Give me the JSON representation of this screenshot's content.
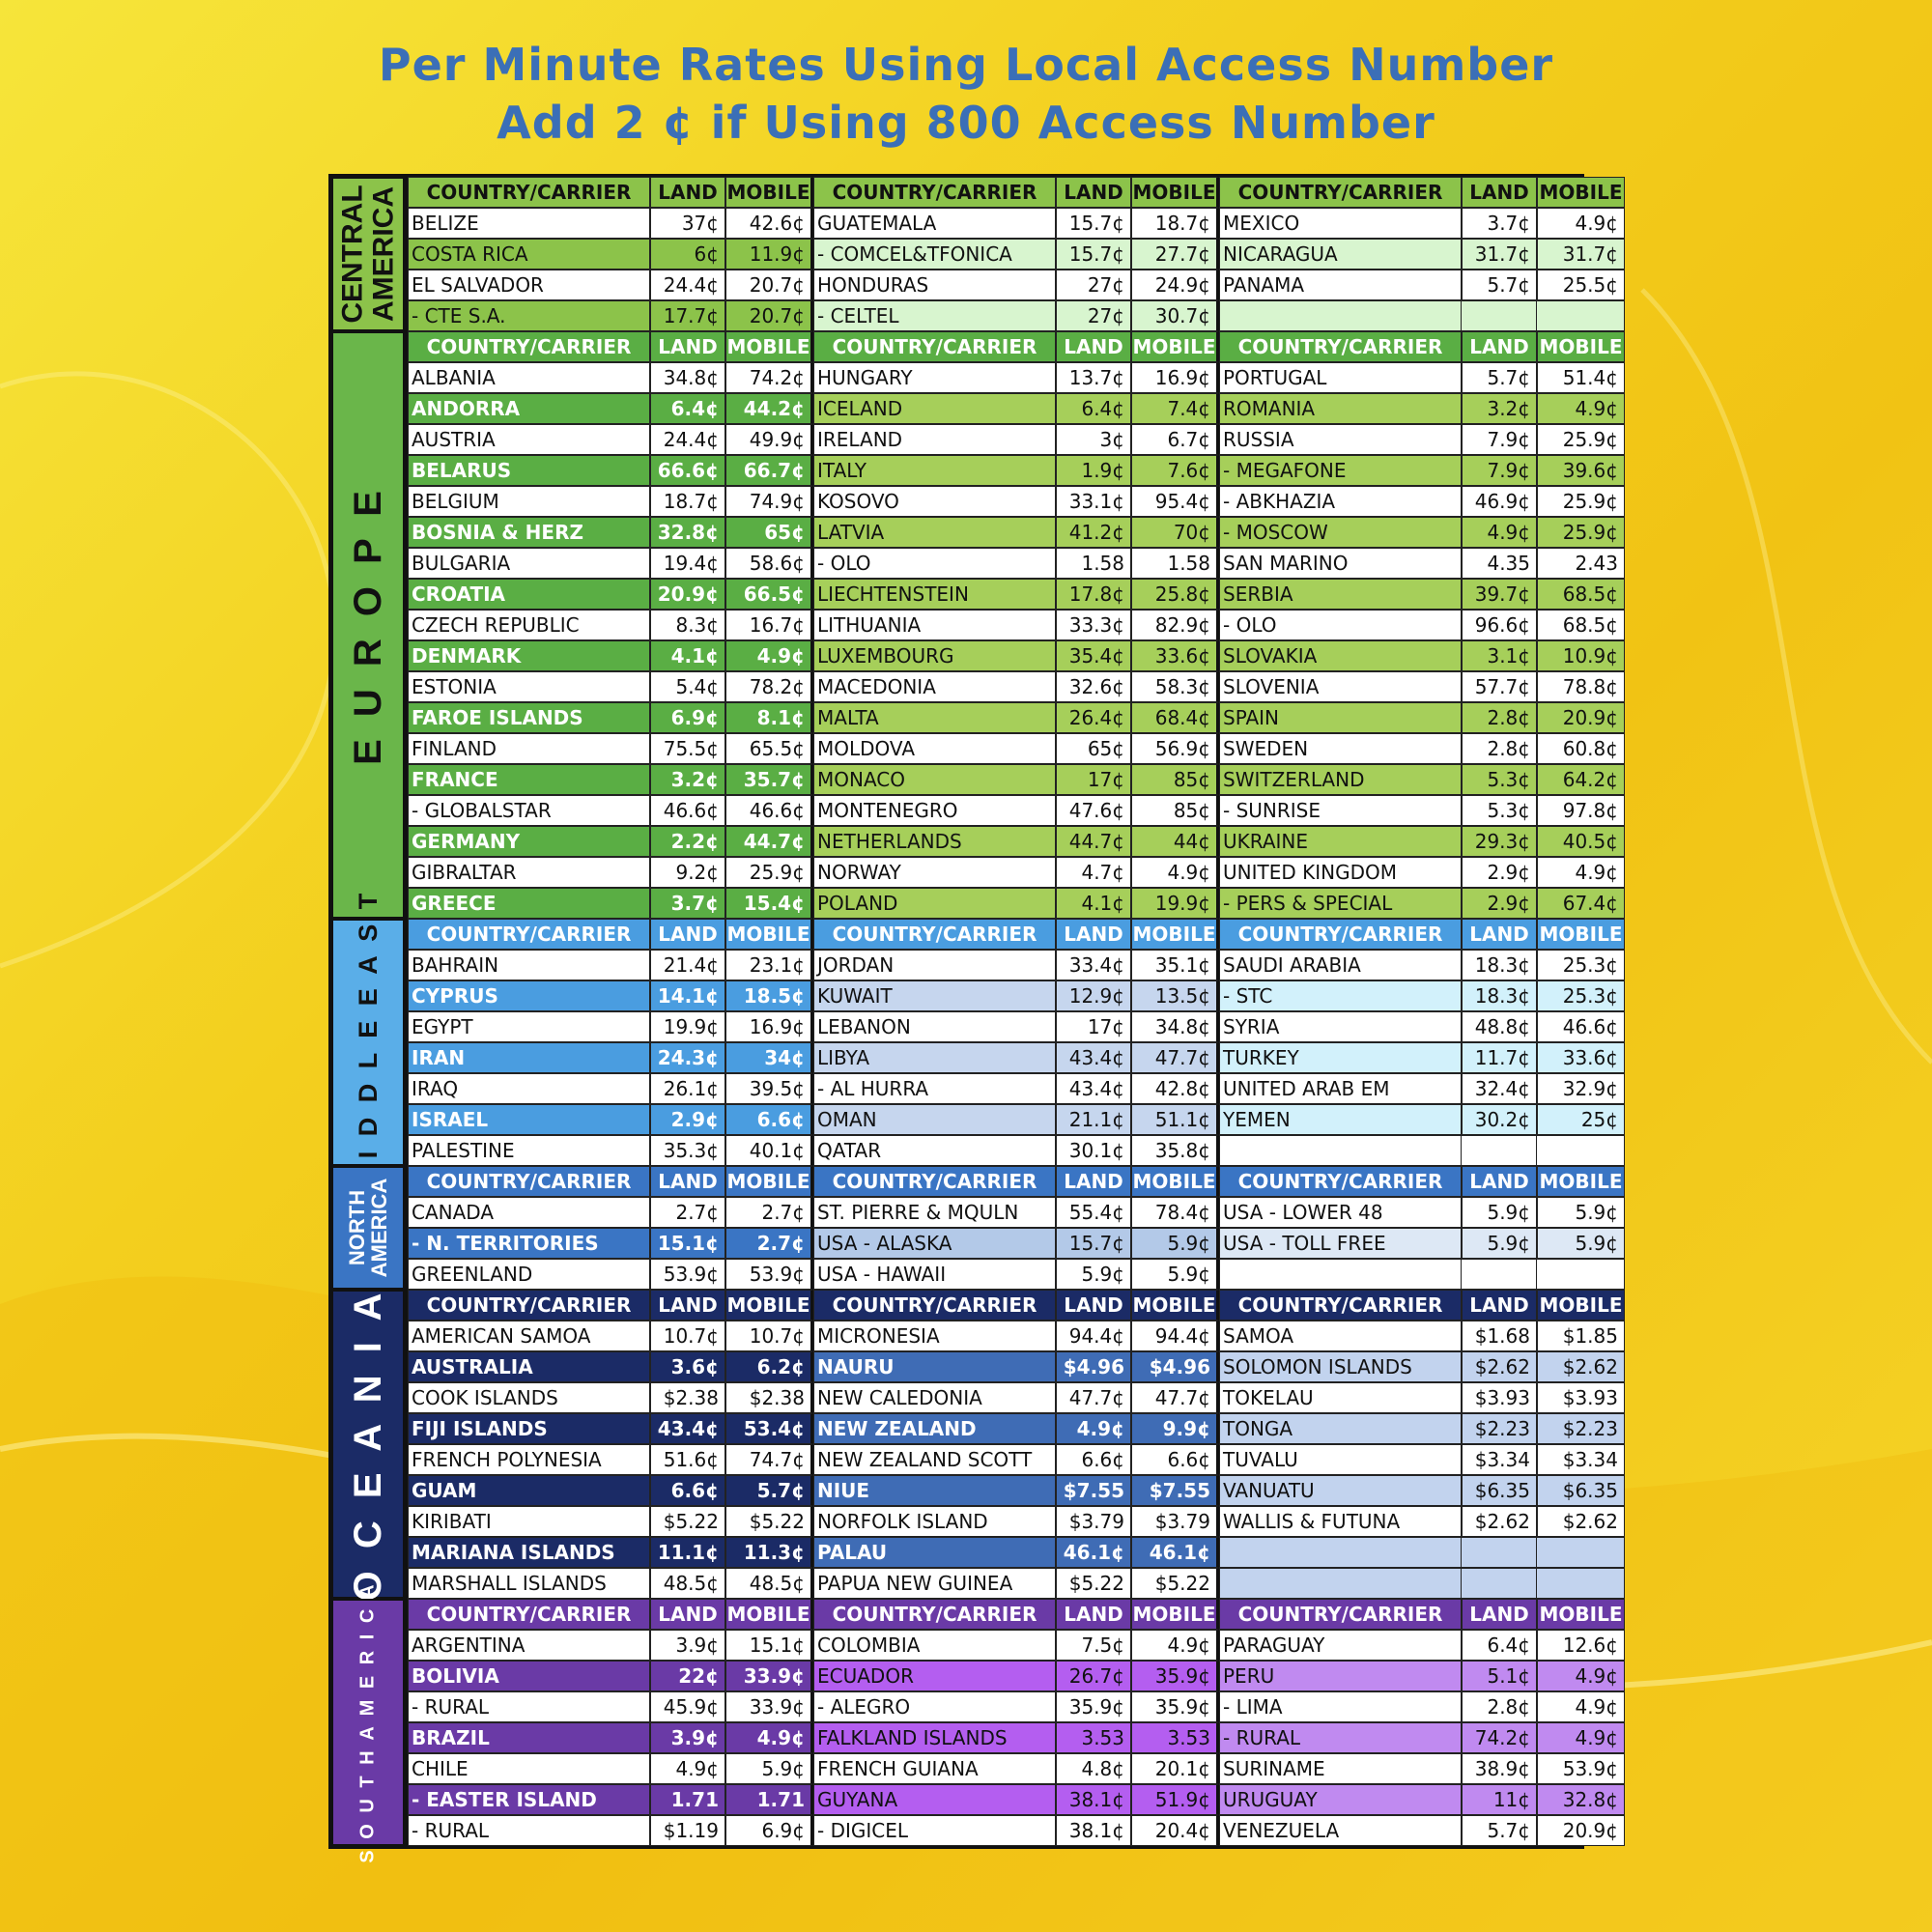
{
  "title_line1": "Per Minute Rates Using Local Access Number",
  "title_line2": "Add 2 ¢ if Using 800 Access Number",
  "headers": [
    "COUNTRY/CARRIER",
    "LAND",
    "MOBILE"
  ],
  "regions": [
    {
      "name": "CENTRAL\nAMERICA",
      "label_color": "#111111",
      "label_size": 30,
      "label_spacing": 0,
      "side_bg": "#8cc34a",
      "hdr_bg": "#8cc34a",
      "hdr_fg": "#111111",
      "alt": [
        "#ffffff",
        "#8cc34a",
        "#d8f5cf"
      ],
      "cols": [
        [
          [
            "BELIZE",
            "37¢",
            "42.6¢"
          ],
          [
            "COSTA RICA",
            "6¢",
            "11.9¢"
          ],
          [
            "EL SALVADOR",
            "24.4¢",
            "20.7¢"
          ],
          [
            "  - CTE S.A.",
            "17.7¢",
            "20.7¢"
          ]
        ],
        [
          [
            "GUATEMALA",
            "15.7¢",
            "18.7¢"
          ],
          [
            "  - COMCEL&TFONICA",
            "15.7¢",
            "27.7¢"
          ],
          [
            "HONDURAS",
            "27¢",
            "24.9¢"
          ],
          [
            "  - CELTEL",
            "27¢",
            "30.7¢"
          ]
        ],
        [
          [
            "MEXICO",
            "3.7¢",
            "4.9¢"
          ],
          [
            "NICARAGUA",
            "31.7¢",
            "31.7¢"
          ],
          [
            "PANAMA",
            "5.7¢",
            "25.5¢"
          ],
          [
            "",
            "",
            ""
          ]
        ]
      ]
    },
    {
      "name": "E U R O P E",
      "label_color": "#111111",
      "label_size": 40,
      "label_spacing": 6,
      "side_bg": "#6ab64a",
      "hdr_bg": "#5aae44",
      "hdr_fg": "#ffffff",
      "alt": [
        "#ffffff",
        "#5aae44",
        "#a6cf5a"
      ],
      "cols": [
        [
          [
            "ALBANIA",
            "34.8¢",
            "74.2¢"
          ],
          [
            "ANDORRA",
            "6.4¢",
            "44.2¢"
          ],
          [
            "AUSTRIA",
            "24.4¢",
            "49.9¢"
          ],
          [
            "BELARUS",
            "66.6¢",
            "66.7¢"
          ],
          [
            "BELGIUM",
            "18.7¢",
            "74.9¢"
          ],
          [
            "BOSNIA & HERZ",
            "32.8¢",
            "65¢"
          ],
          [
            "BULGARIA",
            "19.4¢",
            "58.6¢"
          ],
          [
            "CROATIA",
            "20.9¢",
            "66.5¢"
          ],
          [
            "CZECH REPUBLIC",
            "8.3¢",
            "16.7¢"
          ],
          [
            "DENMARK",
            "4.1¢",
            "4.9¢"
          ],
          [
            "ESTONIA",
            "5.4¢",
            "78.2¢"
          ],
          [
            "FAROE ISLANDS",
            "6.9¢",
            "8.1¢"
          ],
          [
            "FINLAND",
            "75.5¢",
            "65.5¢"
          ],
          [
            "FRANCE",
            "3.2¢",
            "35.7¢"
          ],
          [
            "  - GLOBALSTAR",
            "46.6¢",
            "46.6¢"
          ],
          [
            "GERMANY",
            "2.2¢",
            "44.7¢"
          ],
          [
            "GIBRALTAR",
            "9.2¢",
            "25.9¢"
          ],
          [
            "GREECE",
            "3.7¢",
            "15.4¢"
          ]
        ],
        [
          [
            "HUNGARY",
            "13.7¢",
            "16.9¢"
          ],
          [
            "ICELAND",
            "6.4¢",
            "7.4¢"
          ],
          [
            "IRELAND",
            "3¢",
            "6.7¢"
          ],
          [
            "ITALY",
            "1.9¢",
            "7.6¢"
          ],
          [
            "KOSOVO",
            "33.1¢",
            "95.4¢"
          ],
          [
            "LATVIA",
            "41.2¢",
            "70¢"
          ],
          [
            "  - OLO",
            "1.58",
            "1.58"
          ],
          [
            "LIECHTENSTEIN",
            "17.8¢",
            "25.8¢"
          ],
          [
            "LITHUANIA",
            "33.3¢",
            "82.9¢"
          ],
          [
            "LUXEMBOURG",
            "35.4¢",
            "33.6¢"
          ],
          [
            "MACEDONIA",
            "32.6¢",
            "58.3¢"
          ],
          [
            "MALTA",
            "26.4¢",
            "68.4¢"
          ],
          [
            "MOLDOVA",
            "65¢",
            "56.9¢"
          ],
          [
            "MONACO",
            "17¢",
            "85¢"
          ],
          [
            "MONTENEGRO",
            "47.6¢",
            "85¢"
          ],
          [
            "NETHERLANDS",
            "44.7¢",
            "44¢"
          ],
          [
            "NORWAY",
            "4.7¢",
            "4.9¢"
          ],
          [
            "POLAND",
            "4.1¢",
            "19.9¢"
          ]
        ],
        [
          [
            "PORTUGAL",
            "5.7¢",
            "51.4¢"
          ],
          [
            "ROMANIA",
            "3.2¢",
            "4.9¢"
          ],
          [
            "RUSSIA",
            "7.9¢",
            "25.9¢"
          ],
          [
            "  - MEGAFONE",
            "7.9¢",
            "39.6¢"
          ],
          [
            "  - ABKHAZIA",
            "46.9¢",
            "25.9¢"
          ],
          [
            "  - MOSCOW",
            "4.9¢",
            "25.9¢"
          ],
          [
            "SAN MARINO",
            "4.35",
            "2.43"
          ],
          [
            "SERBIA",
            "39.7¢",
            "68.5¢"
          ],
          [
            "  - OLO",
            "96.6¢",
            "68.5¢"
          ],
          [
            "SLOVAKIA",
            "3.1¢",
            "10.9¢"
          ],
          [
            "SLOVENIA",
            "57.7¢",
            "78.8¢"
          ],
          [
            "SPAIN",
            "2.8¢",
            "20.9¢"
          ],
          [
            "SWEDEN",
            "2.8¢",
            "60.8¢"
          ],
          [
            "SWITZERLAND",
            "5.3¢",
            "64.2¢"
          ],
          [
            "  - SUNRISE",
            "5.3¢",
            "97.8¢"
          ],
          [
            "UKRAINE",
            "29.3¢",
            "40.5¢"
          ],
          [
            "UNITED KINGDOM",
            "2.9¢",
            "4.9¢"
          ],
          [
            "  - PERS & SPECIAL",
            "2.9¢",
            "67.4¢"
          ]
        ]
      ]
    },
    {
      "name": "M I D D L E   E A S T",
      "label_color": "#111111",
      "label_size": 27,
      "label_spacing": 4,
      "side_bg": "#5aaee8",
      "hdr_bg": "#4a9de0",
      "hdr_fg": "#ffffff",
      "alt": [
        "#ffffff",
        "#4a9de0",
        "#c6d6ee"
      ],
      "alt3": "#d2f1fb",
      "cols": [
        [
          [
            "BAHRAIN",
            "21.4¢",
            "23.1¢"
          ],
          [
            "CYPRUS",
            "14.1¢",
            "18.5¢"
          ],
          [
            "EGYPT",
            "19.9¢",
            "16.9¢"
          ],
          [
            "IRAN",
            "24.3¢",
            "34¢"
          ],
          [
            "IRAQ",
            "26.1¢",
            "39.5¢"
          ],
          [
            "ISRAEL",
            "2.9¢",
            "6.6¢"
          ],
          [
            "PALESTINE",
            "35.3¢",
            "40.1¢"
          ]
        ],
        [
          [
            "JORDAN",
            "33.4¢",
            "35.1¢"
          ],
          [
            "KUWAIT",
            "12.9¢",
            "13.5¢"
          ],
          [
            "LEBANON",
            "17¢",
            "34.8¢"
          ],
          [
            "LIBYA",
            "43.4¢",
            "47.7¢"
          ],
          [
            "  - AL HURRA",
            "43.4¢",
            "42.8¢"
          ],
          [
            "OMAN",
            "21.1¢",
            "51.1¢"
          ],
          [
            "QATAR",
            "30.1¢",
            "35.8¢"
          ]
        ],
        [
          [
            "SAUDI ARABIA",
            "18.3¢",
            "25.3¢"
          ],
          [
            "  - STC",
            "18.3¢",
            "25.3¢"
          ],
          [
            "SYRIA",
            "48.8¢",
            "46.6¢"
          ],
          [
            "TURKEY",
            "11.7¢",
            "33.6¢"
          ],
          [
            "UNITED ARAB EM",
            "32.4¢",
            "32.9¢"
          ],
          [
            "YEMEN",
            "30.2¢",
            "25¢"
          ],
          [
            "",
            "",
            ""
          ]
        ]
      ]
    },
    {
      "name": "NORTH\nAMERICA",
      "label_color": "#ffffff",
      "label_size": 22,
      "label_spacing": 0,
      "side_bg": "#3a75c4",
      "hdr_bg": "#3a75c4",
      "hdr_fg": "#ffffff",
      "alt": [
        "#ffffff",
        "#3a75c4",
        "#b3c9e8"
      ],
      "alt3": "#dde8f5",
      "cols": [
        [
          [
            "CANADA",
            "2.7¢",
            "2.7¢"
          ],
          [
            "  - N. TERRITORIES",
            "15.1¢",
            "2.7¢"
          ],
          [
            "GREENLAND",
            "53.9¢",
            "53.9¢"
          ]
        ],
        [
          [
            "ST. PIERRE & MQULN",
            "55.4¢",
            "78.4¢"
          ],
          [
            "USA - ALASKA",
            "15.7¢",
            "5.9¢"
          ],
          [
            "USA - HAWAII",
            "5.9¢",
            "5.9¢"
          ]
        ],
        [
          [
            "USA - LOWER 48",
            "5.9¢",
            "5.9¢"
          ],
          [
            "USA - TOLL FREE",
            "5.9¢",
            "5.9¢"
          ],
          [
            "",
            "",
            ""
          ]
        ]
      ]
    },
    {
      "name": "O C E A N I A",
      "label_color": "#ffffff",
      "label_size": 40,
      "label_spacing": 6,
      "side_bg": "#1b2b66",
      "hdr_bg": "#1b2b66",
      "hdr_fg": "#ffffff",
      "alt": [
        "#ffffff",
        "#1b2b66",
        "#3f6cb5"
      ],
      "alt3": "#c2d3ee",
      "cols": [
        [
          [
            "AMERICAN SAMOA",
            "10.7¢",
            "10.7¢"
          ],
          [
            "AUSTRALIA",
            "3.6¢",
            "6.2¢"
          ],
          [
            "COOK ISLANDS",
            "$2.38",
            "$2.38"
          ],
          [
            "FIJI ISLANDS",
            "43.4¢",
            "53.4¢"
          ],
          [
            "FRENCH POLYNESIA",
            "51.6¢",
            "74.7¢"
          ],
          [
            "GUAM",
            "6.6¢",
            "5.7¢"
          ],
          [
            "KIRIBATI",
            "$5.22",
            "$5.22"
          ],
          [
            "MARIANA ISLANDS",
            "11.1¢",
            "11.3¢"
          ],
          [
            "MARSHALL ISLANDS",
            "48.5¢",
            "48.5¢"
          ]
        ],
        [
          [
            "MICRONESIA",
            "94.4¢",
            "94.4¢"
          ],
          [
            "NAURU",
            "$4.96",
            "$4.96"
          ],
          [
            "NEW CALEDONIA",
            "47.7¢",
            "47.7¢"
          ],
          [
            "NEW ZEALAND",
            "4.9¢",
            "9.9¢"
          ],
          [
            "NEW ZEALAND SCOTT",
            "6.6¢",
            "6.6¢"
          ],
          [
            "NIUE",
            "$7.55",
            "$7.55"
          ],
          [
            "NORFOLK ISLAND",
            "$3.79",
            "$3.79"
          ],
          [
            "PALAU",
            "46.1¢",
            "46.1¢"
          ],
          [
            "PAPUA NEW GUINEA",
            "$5.22",
            "$5.22"
          ]
        ],
        [
          [
            "SAMOA",
            "$1.68",
            "$1.85"
          ],
          [
            "SOLOMON ISLANDS",
            "$2.62",
            "$2.62"
          ],
          [
            "TOKELAU",
            "$3.93",
            "$3.93"
          ],
          [
            "TONGA",
            "$2.23",
            "$2.23"
          ],
          [
            "TUVALU",
            "$3.34",
            "$3.34"
          ],
          [
            "VANUATU",
            "$6.35",
            "$6.35"
          ],
          [
            "WALLIS & FUTUNA",
            "$2.62",
            "$2.62"
          ],
          [
            "",
            "",
            ""
          ],
          [
            "",
            "",
            ""
          ]
        ]
      ]
    },
    {
      "name": "S O U T H     A M E R I C A",
      "label_color": "#ffffff",
      "label_size": 20,
      "label_spacing": 3,
      "side_bg": "#6a3aa6",
      "hdr_bg": "#6a3aa6",
      "hdr_fg": "#ffffff",
      "alt": [
        "#ffffff",
        "#6a3aa6",
        "#b45ef0"
      ],
      "alt3": "#c08af0",
      "cols": [
        [
          [
            "ARGENTINA",
            "3.9¢",
            "15.1¢"
          ],
          [
            "BOLIVIA",
            "22¢",
            "33.9¢"
          ],
          [
            "  - RURAL",
            "45.9¢",
            "33.9¢"
          ],
          [
            "BRAZIL",
            "3.9¢",
            "4.9¢"
          ],
          [
            "CHILE",
            "4.9¢",
            "5.9¢"
          ],
          [
            "  - EASTER ISLAND",
            "1.71",
            "1.71"
          ],
          [
            "  - RURAL",
            "$1.19",
            "6.9¢"
          ]
        ],
        [
          [
            "COLOMBIA",
            "7.5¢",
            "4.9¢"
          ],
          [
            "ECUADOR",
            "26.7¢",
            "35.9¢"
          ],
          [
            "  - ALEGRO",
            "35.9¢",
            "35.9¢"
          ],
          [
            "FALKLAND ISLANDS",
            "3.53",
            "3.53"
          ],
          [
            "FRENCH GUIANA",
            "4.8¢",
            "20.1¢"
          ],
          [
            "GUYANA",
            "38.1¢",
            "51.9¢"
          ],
          [
            "  - DIGICEL",
            "38.1¢",
            "20.4¢"
          ]
        ],
        [
          [
            "PARAGUAY",
            "6.4¢",
            "12.6¢"
          ],
          [
            "PERU",
            "5.1¢",
            "4.9¢"
          ],
          [
            "  - LIMA",
            "2.8¢",
            "4.9¢"
          ],
          [
            "  - RURAL",
            "74.2¢",
            "4.9¢"
          ],
          [
            "SURINAME",
            "38.9¢",
            "53.9¢"
          ],
          [
            "URUGUAY",
            "11¢",
            "32.8¢"
          ],
          [
            "VENEZUELA",
            "5.7¢",
            "20.9¢"
          ]
        ]
      ]
    }
  ]
}
